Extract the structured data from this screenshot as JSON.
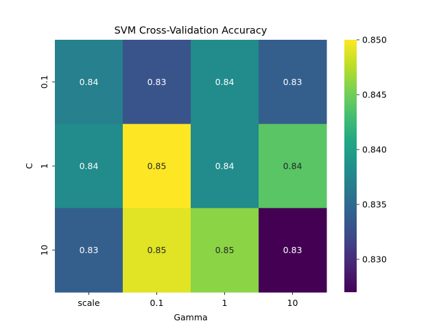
{
  "chart_data": {
    "type": "heatmap",
    "title": "SVM Cross-Validation Accuracy",
    "xlabel": "Gamma",
    "ylabel": "C",
    "x_categories": [
      "scale",
      "0.1",
      "1",
      "10"
    ],
    "y_categories": [
      "0.1",
      "1",
      "10"
    ],
    "values": [
      [
        0.837,
        0.833,
        0.838,
        0.834
      ],
      [
        0.838,
        0.85,
        0.838,
        0.844
      ],
      [
        0.834,
        0.849,
        0.846,
        0.827
      ]
    ],
    "annotations": [
      [
        "0.84",
        "0.83",
        "0.84",
        "0.83"
      ],
      [
        "0.84",
        "0.85",
        "0.84",
        "0.84"
      ],
      [
        "0.83",
        "0.85",
        "0.85",
        "0.83"
      ]
    ],
    "colormap": "viridis",
    "colorbar": {
      "range": [
        0.827,
        0.85
      ],
      "ticks": [
        0.83,
        0.835,
        0.84,
        0.845,
        0.85
      ],
      "tick_labels": [
        "0.830",
        "0.835",
        "0.840",
        "0.845",
        "0.850"
      ]
    }
  }
}
